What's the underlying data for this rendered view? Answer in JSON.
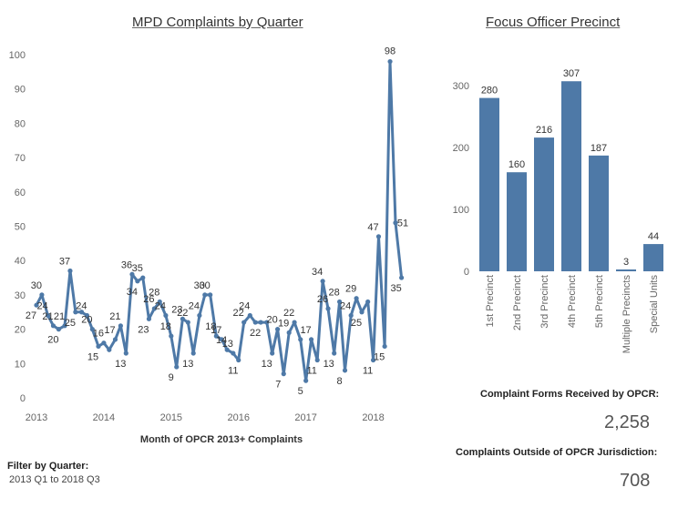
{
  "stats": {
    "forms_label": "Complaint Forms Received by OPCR:",
    "forms_value": "2,258",
    "outside_label": "Complaints Outside of OPCR Jurisdiction:",
    "outside_value": "708"
  },
  "filter": {
    "label": "Filter by Quarter:",
    "value": "2013 Q1 to 2018 Q3"
  },
  "chart_data": [
    {
      "type": "line",
      "title": "MPD Complaints by Quarter",
      "xlabel": "Month of OPCR 2013+ Complaints",
      "ylabel": "",
      "ylim": [
        0,
        100
      ],
      "yticks": [
        0,
        10,
        20,
        30,
        40,
        50,
        60,
        70,
        80,
        90,
        100
      ],
      "xticks": [
        "2013",
        "2014",
        "2015",
        "2016",
        "2017",
        "2018"
      ],
      "xlim": [
        2013.0,
        2018.75
      ],
      "color": "#4e79a7",
      "points": [
        [
          2013.0,
          27
        ],
        [
          2013.08,
          30
        ],
        [
          2013.17,
          24
        ],
        [
          2013.25,
          21
        ],
        [
          2013.33,
          20
        ],
        [
          2013.42,
          21
        ],
        [
          2013.5,
          37
        ],
        [
          2013.58,
          25
        ],
        [
          2013.67,
          25
        ],
        [
          2013.75,
          24
        ],
        [
          2013.83,
          20
        ],
        [
          2013.92,
          15
        ],
        [
          2014.0,
          16
        ],
        [
          2014.08,
          14
        ],
        [
          2014.17,
          17
        ],
        [
          2014.25,
          21
        ],
        [
          2014.33,
          13
        ],
        [
          2014.42,
          36
        ],
        [
          2014.5,
          34
        ],
        [
          2014.58,
          35
        ],
        [
          2014.67,
          23
        ],
        [
          2014.75,
          26
        ],
        [
          2014.83,
          28
        ],
        [
          2014.92,
          24
        ],
        [
          2015.0,
          18
        ],
        [
          2015.08,
          9
        ],
        [
          2015.17,
          23
        ],
        [
          2015.25,
          22
        ],
        [
          2015.33,
          13
        ],
        [
          2015.42,
          24
        ],
        [
          2015.5,
          30
        ],
        [
          2015.58,
          30
        ],
        [
          2015.67,
          18
        ],
        [
          2015.75,
          17
        ],
        [
          2015.83,
          14
        ],
        [
          2015.92,
          13
        ],
        [
          2016.0,
          11
        ],
        [
          2016.08,
          22
        ],
        [
          2016.17,
          24
        ],
        [
          2016.25,
          22
        ],
        [
          2016.33,
          22
        ],
        [
          2016.42,
          22
        ],
        [
          2016.5,
          13
        ],
        [
          2016.58,
          20
        ],
        [
          2016.67,
          7
        ],
        [
          2016.75,
          19
        ],
        [
          2016.83,
          22
        ],
        [
          2016.92,
          17
        ],
        [
          2017.0,
          5
        ],
        [
          2017.08,
          17
        ],
        [
          2017.17,
          11
        ],
        [
          2017.25,
          34
        ],
        [
          2017.33,
          26
        ],
        [
          2017.42,
          13
        ],
        [
          2017.5,
          28
        ],
        [
          2017.58,
          8
        ],
        [
          2017.67,
          24
        ],
        [
          2017.75,
          29
        ],
        [
          2017.83,
          25
        ],
        [
          2017.92,
          28
        ],
        [
          2018.0,
          11
        ],
        [
          2018.08,
          47
        ],
        [
          2018.17,
          15
        ],
        [
          2018.25,
          98
        ],
        [
          2018.33,
          51
        ],
        [
          2018.42,
          35
        ]
      ],
      "data_labels": [
        [
          2013.0,
          27,
          "27"
        ],
        [
          2013.08,
          30,
          "30"
        ],
        [
          2013.17,
          24,
          "24"
        ],
        [
          2013.25,
          21,
          "21"
        ],
        [
          2013.33,
          20,
          "20"
        ],
        [
          2013.42,
          21,
          "21"
        ],
        [
          2013.5,
          37,
          "37"
        ],
        [
          2013.58,
          25,
          "25"
        ],
        [
          2013.75,
          24,
          "24"
        ],
        [
          2013.83,
          20,
          "20"
        ],
        [
          2013.92,
          15,
          "15"
        ],
        [
          2014.0,
          16,
          "16"
        ],
        [
          2014.17,
          17,
          "17"
        ],
        [
          2014.25,
          21,
          "21"
        ],
        [
          2014.33,
          13,
          "13"
        ],
        [
          2014.42,
          36,
          "36"
        ],
        [
          2014.5,
          34,
          "34"
        ],
        [
          2014.58,
          35,
          "35"
        ],
        [
          2014.67,
          23,
          "23"
        ],
        [
          2014.75,
          26,
          "26"
        ],
        [
          2014.83,
          28,
          "28"
        ],
        [
          2014.92,
          24,
          "24"
        ],
        [
          2015.0,
          18,
          "18"
        ],
        [
          2015.08,
          9,
          "9"
        ],
        [
          2015.17,
          23,
          "23"
        ],
        [
          2015.25,
          22,
          "22"
        ],
        [
          2015.33,
          13,
          "13"
        ],
        [
          2015.42,
          24,
          "24"
        ],
        [
          2015.5,
          30,
          "30"
        ],
        [
          2015.58,
          30,
          "30"
        ],
        [
          2015.67,
          18,
          "18"
        ],
        [
          2015.75,
          17,
          "17"
        ],
        [
          2015.83,
          14,
          "14"
        ],
        [
          2015.92,
          13,
          "13"
        ],
        [
          2016.0,
          11,
          "11"
        ],
        [
          2016.08,
          22,
          "22"
        ],
        [
          2016.17,
          24,
          "24"
        ],
        [
          2016.33,
          22,
          "22"
        ],
        [
          2016.5,
          13,
          "13"
        ],
        [
          2016.58,
          20,
          "20"
        ],
        [
          2016.67,
          7,
          "7"
        ],
        [
          2016.75,
          19,
          "19"
        ],
        [
          2016.83,
          22,
          "22"
        ],
        [
          2017.0,
          5,
          "5"
        ],
        [
          2017.08,
          17,
          "17"
        ],
        [
          2017.17,
          11,
          "11"
        ],
        [
          2017.25,
          34,
          "34"
        ],
        [
          2017.33,
          26,
          "26"
        ],
        [
          2017.42,
          13,
          "13"
        ],
        [
          2017.5,
          28,
          "28"
        ],
        [
          2017.58,
          8,
          "8"
        ],
        [
          2017.67,
          24,
          "24"
        ],
        [
          2017.75,
          29,
          "29"
        ],
        [
          2017.83,
          25,
          "25"
        ],
        [
          2018.0,
          11,
          "11"
        ],
        [
          2018.08,
          47,
          "47"
        ],
        [
          2018.17,
          15,
          "15"
        ],
        [
          2018.25,
          98,
          "98"
        ],
        [
          2018.33,
          51,
          "51"
        ],
        [
          2018.42,
          35,
          "35"
        ]
      ]
    },
    {
      "type": "bar",
      "title": "Focus Officer Precinct",
      "categories": [
        "1st Precinct",
        "2nd Precinct",
        "3rd Precinct",
        "4th Precinct",
        "5th Precinct",
        "Multiple Precincts",
        "Special Units"
      ],
      "values": [
        280,
        160,
        216,
        307,
        187,
        3,
        44
      ],
      "ylim": [
        0,
        350
      ],
      "yticks": [
        0,
        100,
        200,
        300
      ],
      "xlabel": "",
      "ylabel": "",
      "color": "#4e79a7"
    }
  ]
}
